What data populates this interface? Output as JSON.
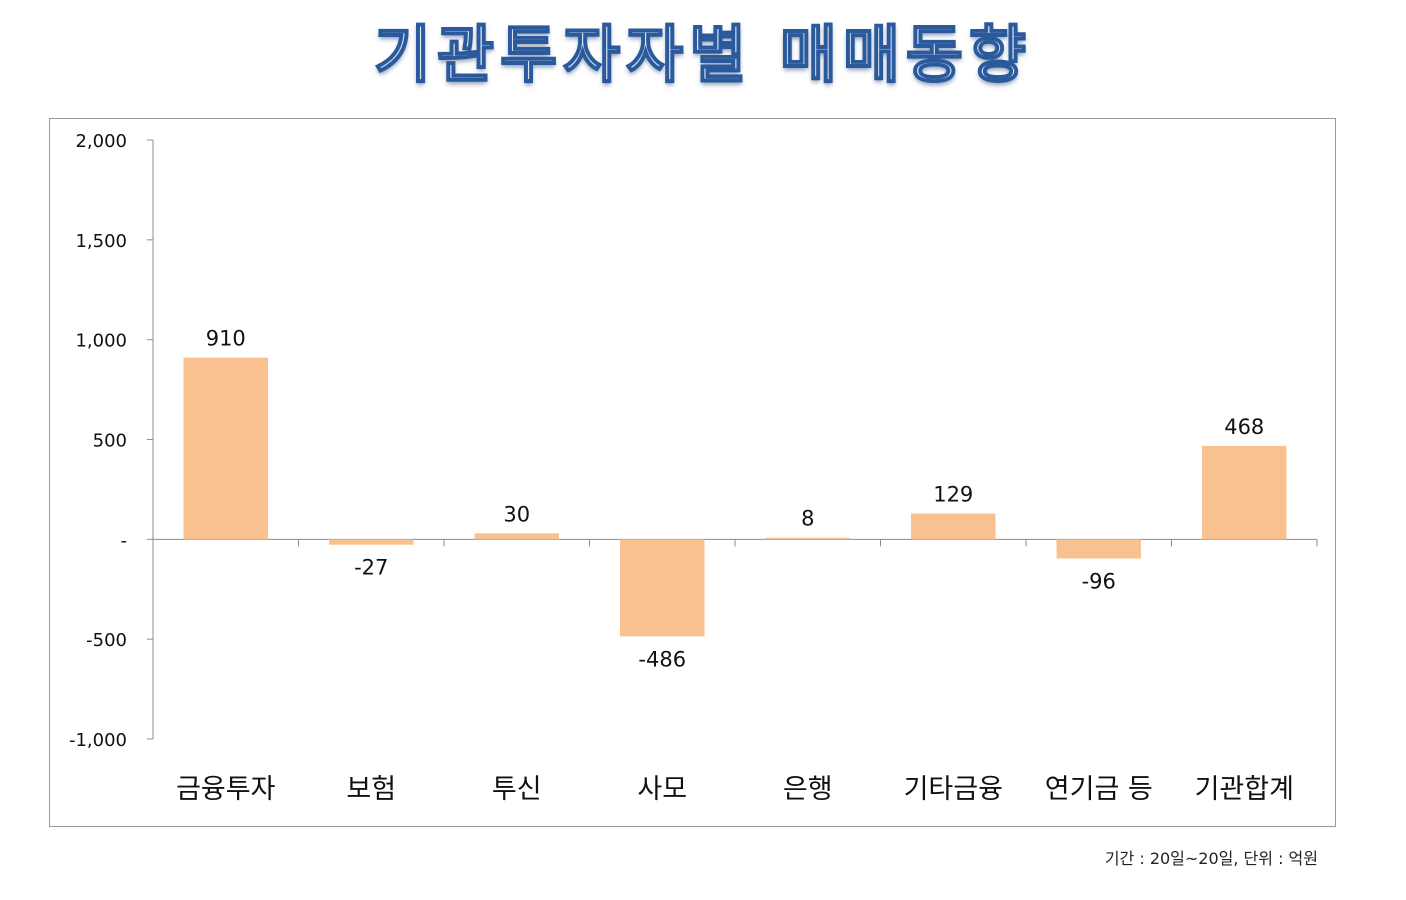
{
  "chart_data": {
    "type": "bar",
    "title": "기관투자자별 매매동향",
    "categories": [
      "금융투자",
      "보험",
      "투신",
      "사모",
      "은행",
      "기타금융",
      "연기금 등",
      "기관합계"
    ],
    "values": [
      910,
      -27,
      30,
      -486,
      8,
      129,
      -96,
      468
    ],
    "value_labels": [
      "910",
      "-27",
      "30",
      "-486",
      "8",
      "129",
      "-96",
      "468"
    ],
    "ylim": [
      -1000,
      2000
    ],
    "yticks": [
      2000,
      1500,
      1000,
      500,
      0,
      -500,
      -1000
    ],
    "ytick_labels": [
      "2,000",
      "1,500",
      "1,000",
      "500",
      "-",
      "-500",
      "-1,000"
    ],
    "xlabel": "",
    "ylabel": "",
    "grid": false,
    "legend": "none",
    "bar_color": "#f9c090",
    "axis_color": "#8c8c8c"
  },
  "footnote": "기간 : 20일~20일, 단위 : 억원"
}
